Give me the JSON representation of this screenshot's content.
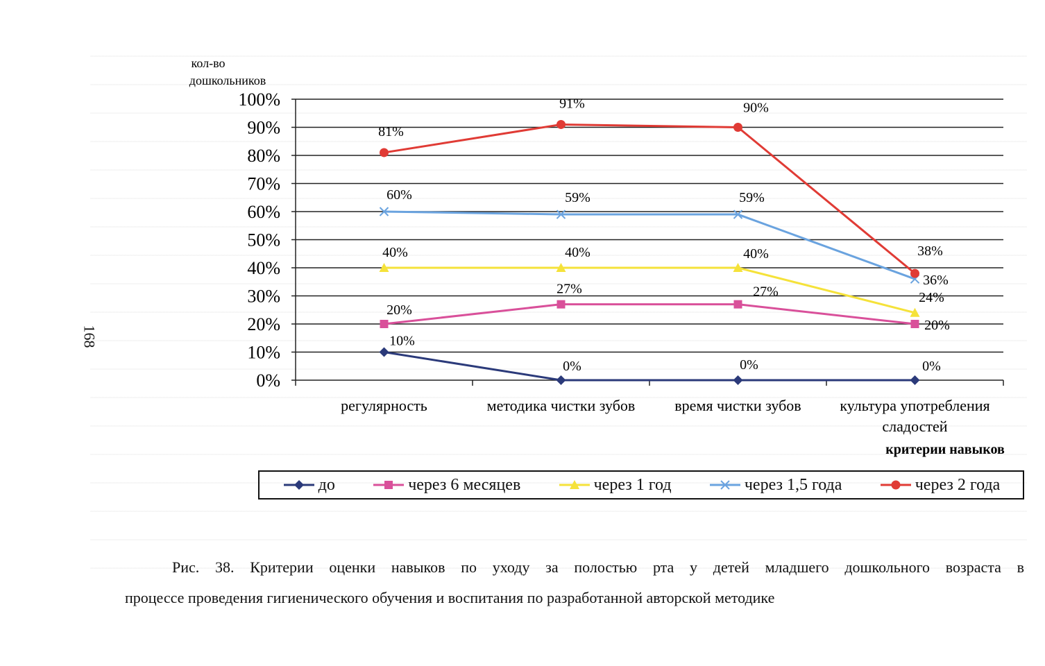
{
  "page": {
    "page_number": "168",
    "caption_line1": "Рис. 38. Критерии оценки навыков по уходу за полостью рта у детей младшего дошкольного возраста в",
    "caption_line2": "процессе проведения гигиенического обучения и воспитания по разработанной авторской методике"
  },
  "chart_data": {
    "type": "line",
    "ylabel_line1": "кол-во",
    "ylabel_line2": "дошкольников",
    "xlabel": "критерии навыков",
    "ylim": [
      0,
      100
    ],
    "yticks": [
      "0%",
      "10%",
      "20%",
      "30%",
      "40%",
      "50%",
      "60%",
      "70%",
      "80%",
      "90%",
      "100%"
    ],
    "grid": true,
    "legend_position": "bottom",
    "categories": [
      [
        "регулярность"
      ],
      [
        "методика чистки зубов"
      ],
      [
        "время чистки зубов"
      ],
      [
        "культура употребления",
        "сладостей"
      ]
    ],
    "series": [
      {
        "name": "до",
        "values": [
          10,
          0,
          0,
          0
        ],
        "labels": [
          "10%",
          "0%",
          "0%",
          "0%"
        ],
        "color": "#2b3a7a",
        "marker": "diamond"
      },
      {
        "name": "через 6 месяцев",
        "values": [
          20,
          27,
          27,
          20
        ],
        "labels": [
          "20%",
          "27%",
          "27%",
          "20%"
        ],
        "color": "#d9509a",
        "marker": "square"
      },
      {
        "name": "через 1 год",
        "values": [
          40,
          40,
          40,
          24
        ],
        "labels": [
          "40%",
          "40%",
          "40%",
          "24%"
        ],
        "color": "#f5e23a",
        "marker": "triangle"
      },
      {
        "name": "через 1,5 года",
        "values": [
          60,
          59,
          59,
          36
        ],
        "labels": [
          "60%",
          "59%",
          "59%",
          "36%"
        ],
        "color": "#6aa3df",
        "marker": "x"
      },
      {
        "name": "через 2 года",
        "values": [
          81,
          91,
          90,
          38
        ],
        "labels": [
          "81%",
          "91%",
          "90%",
          "38%"
        ],
        "color": "#e03b35",
        "marker": "circle"
      }
    ]
  }
}
